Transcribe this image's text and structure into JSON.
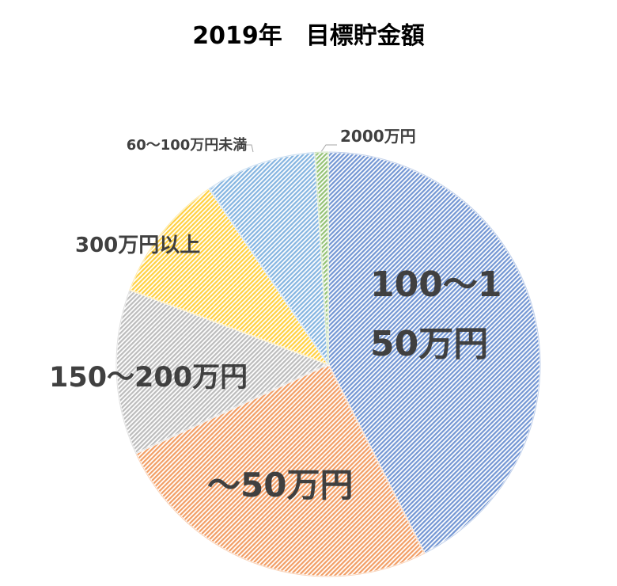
{
  "chart_data": {
    "type": "pie",
    "title": "2019年　目標貯金額",
    "categories": [
      "100～150万円",
      "～50万円",
      "150～200万円",
      "300万円以上",
      "60～100万円未満",
      "2000万円"
    ],
    "values": [
      42.5,
      25.6,
      12.6,
      9.8,
      8.5,
      1.0
    ],
    "colors": [
      "#4472c4",
      "#ed7d31",
      "#a5a5a5",
      "#ffc000",
      "#5b9bd5",
      "#70ad47"
    ]
  }
}
